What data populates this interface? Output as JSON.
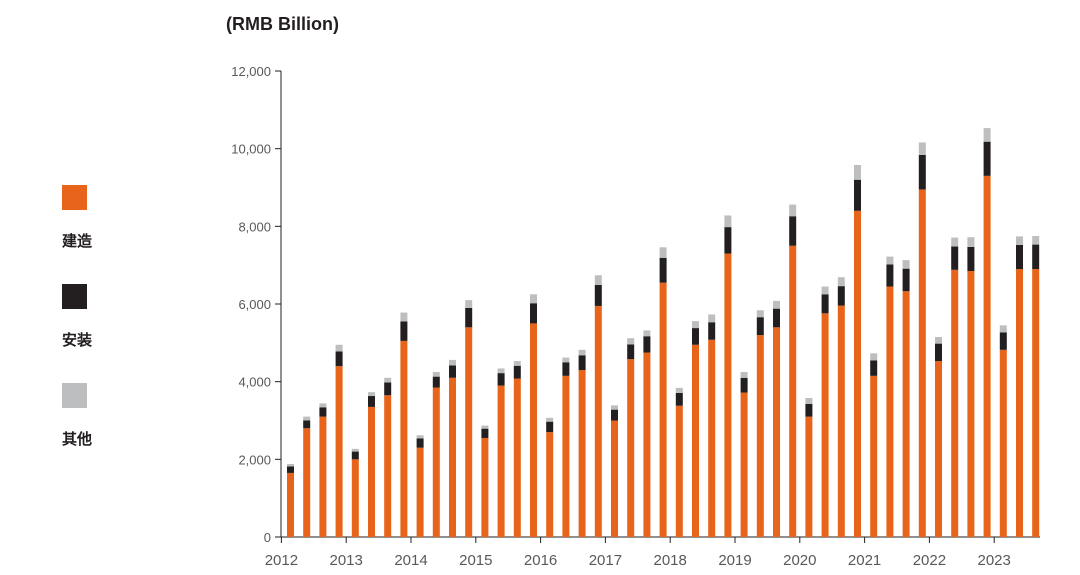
{
  "chart_data": {
    "type": "bar",
    "stacked": true,
    "unit_label": "(RMB Billion)",
    "y_ticks": [
      "0",
      "2,000",
      "4,000",
      "6,000",
      "8,000",
      "10,000",
      "12,000"
    ],
    "ylim": [
      0,
      12000
    ],
    "x_tick_labels": [
      "2012",
      "2013",
      "2014",
      "2015",
      "2016",
      "2017",
      "2018",
      "2019",
      "2020",
      "2021",
      "2022",
      "2023"
    ],
    "grid": false,
    "legend_position": "left",
    "series": [
      {
        "name": "建造",
        "color": "#e8641b",
        "values": [
          1650,
          2800,
          3100,
          4400,
          2000,
          3350,
          3650,
          5050,
          2300,
          3850,
          4100,
          5400,
          2550,
          3900,
          4080,
          5500,
          2700,
          4150,
          4300,
          5950,
          3000,
          4580,
          4750,
          6550,
          3380,
          4950,
          5080,
          7300,
          3720,
          5200,
          5400,
          7500,
          3100,
          5760,
          5960,
          8400,
          4150,
          6450,
          6330,
          8950,
          4530,
          6880,
          6850,
          9300,
          4820,
          6900,
          6900
        ]
      },
      {
        "name": "安装",
        "color": "#231f20",
        "values": [
          170,
          200,
          240,
          380,
          200,
          280,
          330,
          500,
          240,
          280,
          320,
          500,
          240,
          320,
          330,
          520,
          270,
          350,
          380,
          540,
          280,
          380,
          420,
          640,
          330,
          430,
          450,
          680,
          380,
          460,
          480,
          760,
          330,
          490,
          500,
          800,
          400,
          570,
          580,
          890,
          450,
          600,
          620,
          880,
          450,
          620,
          630
        ]
      },
      {
        "name": "其他",
        "color": "#bcbec0",
        "values": [
          60,
          100,
          100,
          170,
          70,
          100,
          120,
          230,
          80,
          120,
          140,
          200,
          80,
          120,
          120,
          230,
          100,
          120,
          140,
          250,
          110,
          160,
          150,
          270,
          130,
          180,
          200,
          300,
          150,
          180,
          200,
          300,
          150,
          200,
          230,
          380,
          180,
          200,
          220,
          320,
          170,
          230,
          250,
          350,
          180,
          220,
          220
        ]
      }
    ]
  }
}
